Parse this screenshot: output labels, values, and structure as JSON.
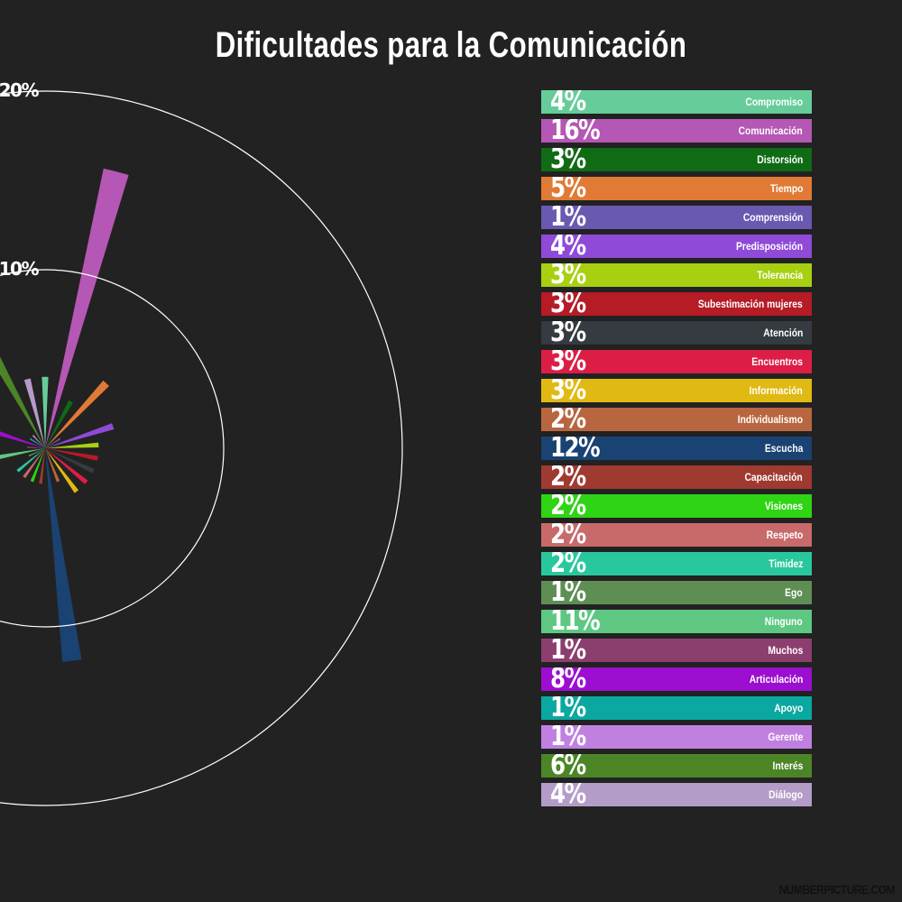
{
  "title": "Dificultades para la Comunicación",
  "footer": "NUMBERPICTURE.COM",
  "chart_data": {
    "type": "polar-bar",
    "title": "Dificultades para la Comunicación",
    "rings": [
      {
        "value": 10,
        "label": "10%"
      },
      {
        "value": 20,
        "label": "20%"
      }
    ],
    "rmax": 20,
    "categories": [
      {
        "name": "Compromiso",
        "value": 4,
        "label": "4%",
        "color": "#66cc99"
      },
      {
        "name": "Comunicación",
        "value": 16,
        "label": "16%",
        "color": "#b557b5"
      },
      {
        "name": "Distorsión",
        "value": 3,
        "label": "3%",
        "color": "#0f6b14"
      },
      {
        "name": "Tiempo",
        "value": 5,
        "label": "5%",
        "color": "#e07a35"
      },
      {
        "name": "Comprensión",
        "value": 1,
        "label": "1%",
        "color": "#6b58b0"
      },
      {
        "name": "Predisposición",
        "value": 4,
        "label": "4%",
        "color": "#8f4ad8"
      },
      {
        "name": "Tolerancia",
        "value": 3,
        "label": "3%",
        "color": "#a8d010"
      },
      {
        "name": "Subestimación mujeres",
        "value": 3,
        "label": "3%",
        "color": "#b51c26"
      },
      {
        "name": "Atención",
        "value": 3,
        "label": "3%",
        "color": "#353b40"
      },
      {
        "name": "Encuentros",
        "value": 3,
        "label": "3%",
        "color": "#dc1e46"
      },
      {
        "name": "Información",
        "value": 3,
        "label": "3%",
        "color": "#e0b912"
      },
      {
        "name": "Individualismo",
        "value": 2,
        "label": "2%",
        "color": "#b86640"
      },
      {
        "name": "Escucha",
        "value": 12,
        "label": "12%",
        "color": "#1a4272"
      },
      {
        "name": "Capacitación",
        "value": 2,
        "label": "2%",
        "color": "#9f3a30"
      },
      {
        "name": "Visiones",
        "value": 2,
        "label": "2%",
        "color": "#2fd414"
      },
      {
        "name": "Respeto",
        "value": 2,
        "label": "2%",
        "color": "#c86a6a"
      },
      {
        "name": "Timidez",
        "value": 2,
        "label": "2%",
        "color": "#28c89c"
      },
      {
        "name": "Ego",
        "value": 1,
        "label": "1%",
        "color": "#5e8e54"
      },
      {
        "name": "Ninguno",
        "value": 11,
        "label": "11%",
        "color": "#5ec882"
      },
      {
        "name": "Muchos",
        "value": 1,
        "label": "1%",
        "color": "#8c3e6e"
      },
      {
        "name": "Articulación",
        "value": 8,
        "label": "8%",
        "color": "#9c0ed0"
      },
      {
        "name": "Apoyo",
        "value": 1,
        "label": "1%",
        "color": "#0aa8a0"
      },
      {
        "name": "Gerente",
        "value": 1,
        "label": "1%",
        "color": "#c080e0"
      },
      {
        "name": "Interés",
        "value": 6,
        "label": "6%",
        "color": "#4c8526"
      },
      {
        "name": "Diálogo",
        "value": 4,
        "label": "4%",
        "color": "#b49cc8"
      }
    ]
  }
}
